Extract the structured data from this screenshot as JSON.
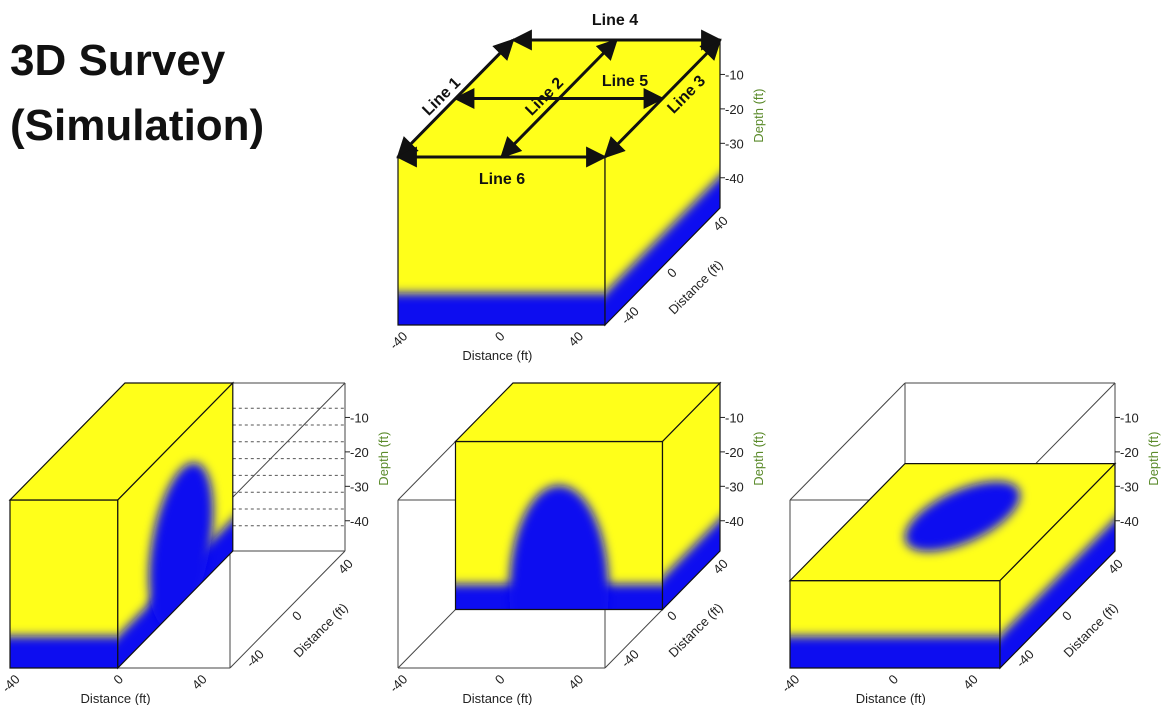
{
  "title": [
    "3D Survey",
    "(Simulation)"
  ],
  "lines": [
    "Line 1",
    "Line 2",
    "Line 3",
    "Line 4",
    "Line 5",
    "Line 6"
  ],
  "panels": [
    {
      "depth_label": "Depth (ft)",
      "depth_ticks": [
        "-10",
        "-20",
        "-30",
        "-40"
      ],
      "x_label": "Distance (ft)",
      "x_ticks": [
        "-40",
        "0",
        "40"
      ],
      "y_label": "Distance (ft)",
      "y_ticks": [
        "40",
        "0",
        "-40"
      ]
    },
    {
      "depth_label": "Depth (ft)",
      "depth_ticks": [
        "-10",
        "-20",
        "-30",
        "-40"
      ],
      "x_label": "Distance (ft)",
      "x_ticks": [
        "-40",
        "0",
        "40"
      ],
      "y_label": "Distance (ft)",
      "y_ticks": [
        "40",
        "0",
        "-40"
      ]
    },
    {
      "depth_label": "Depth (ft)",
      "depth_ticks": [
        "-10",
        "-20",
        "-30",
        "-40"
      ],
      "x_label": "Distance (ft)",
      "x_ticks": [
        "-40",
        "0",
        "40"
      ],
      "y_label": "Distance (ft)",
      "y_ticks": [
        "40",
        "0",
        "-40"
      ]
    },
    {
      "depth_label": "Depth (ft)",
      "depth_ticks": [
        "-10",
        "-20",
        "-30",
        "-40"
      ],
      "x_label": "Distance (ft)",
      "x_ticks": [
        "-40",
        "0",
        "40"
      ],
      "y_label": "Distance (ft)",
      "y_ticks": [
        "40",
        "0",
        "-40"
      ]
    }
  ]
}
